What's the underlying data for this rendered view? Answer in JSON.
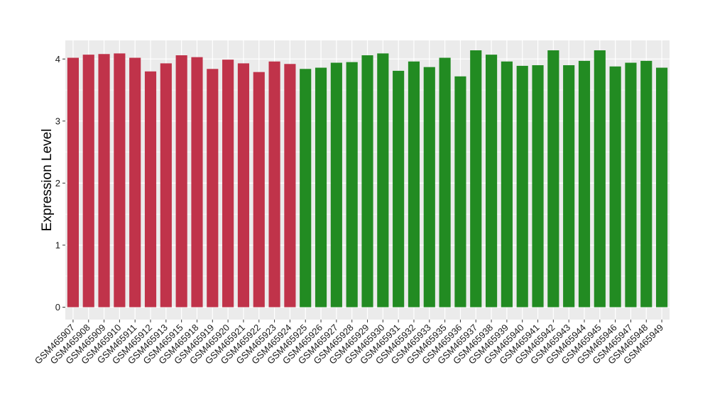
{
  "chart_data": {
    "type": "bar",
    "ylabel": "Expression Level",
    "xlabel": "",
    "ylim": [
      -0.2,
      4.3
    ],
    "yticks": [
      0,
      1,
      2,
      3,
      4
    ],
    "grid": true,
    "categories": [
      "GSM465907",
      "GSM465908",
      "GSM465909",
      "GSM465910",
      "GSM465911",
      "GSM465912",
      "GSM465913",
      "GSM465915",
      "GSM465918",
      "GSM465919",
      "GSM465920",
      "GSM465921",
      "GSM465922",
      "GSM465923",
      "GSM465924",
      "GSM465925",
      "GSM465926",
      "GSM465927",
      "GSM465928",
      "GSM465929",
      "GSM465930",
      "GSM465931",
      "GSM465932",
      "GSM465933",
      "GSM465935",
      "GSM465936",
      "GSM465937",
      "GSM465938",
      "GSM465939",
      "GSM465940",
      "GSM465941",
      "GSM465942",
      "GSM465943",
      "GSM465944",
      "GSM465945",
      "GSM465946",
      "GSM465947",
      "GSM465948",
      "GSM465949"
    ],
    "values": [
      4.02,
      4.07,
      4.08,
      4.09,
      4.02,
      3.8,
      3.93,
      4.06,
      4.03,
      3.84,
      3.99,
      3.93,
      3.79,
      3.96,
      3.92,
      3.84,
      3.86,
      3.94,
      3.95,
      4.06,
      4.09,
      3.81,
      3.96,
      3.87,
      4.02,
      3.72,
      4.14,
      4.07,
      3.96,
      3.89,
      3.9,
      4.14,
      3.9,
      3.97,
      4.14,
      3.88,
      3.94,
      3.97,
      3.86
    ],
    "groups": [
      "red",
      "red",
      "red",
      "red",
      "red",
      "red",
      "red",
      "red",
      "red",
      "red",
      "red",
      "red",
      "red",
      "red",
      "red",
      "green",
      "green",
      "green",
      "green",
      "green",
      "green",
      "green",
      "green",
      "green",
      "green",
      "green",
      "green",
      "green",
      "green",
      "green",
      "green",
      "green",
      "green",
      "green",
      "green",
      "green",
      "green",
      "green",
      "green"
    ],
    "colors": {
      "red": "#c0334a",
      "green": "#228b22"
    },
    "panel_background": "#ebebeb",
    "gridline_color": "#ffffff"
  }
}
